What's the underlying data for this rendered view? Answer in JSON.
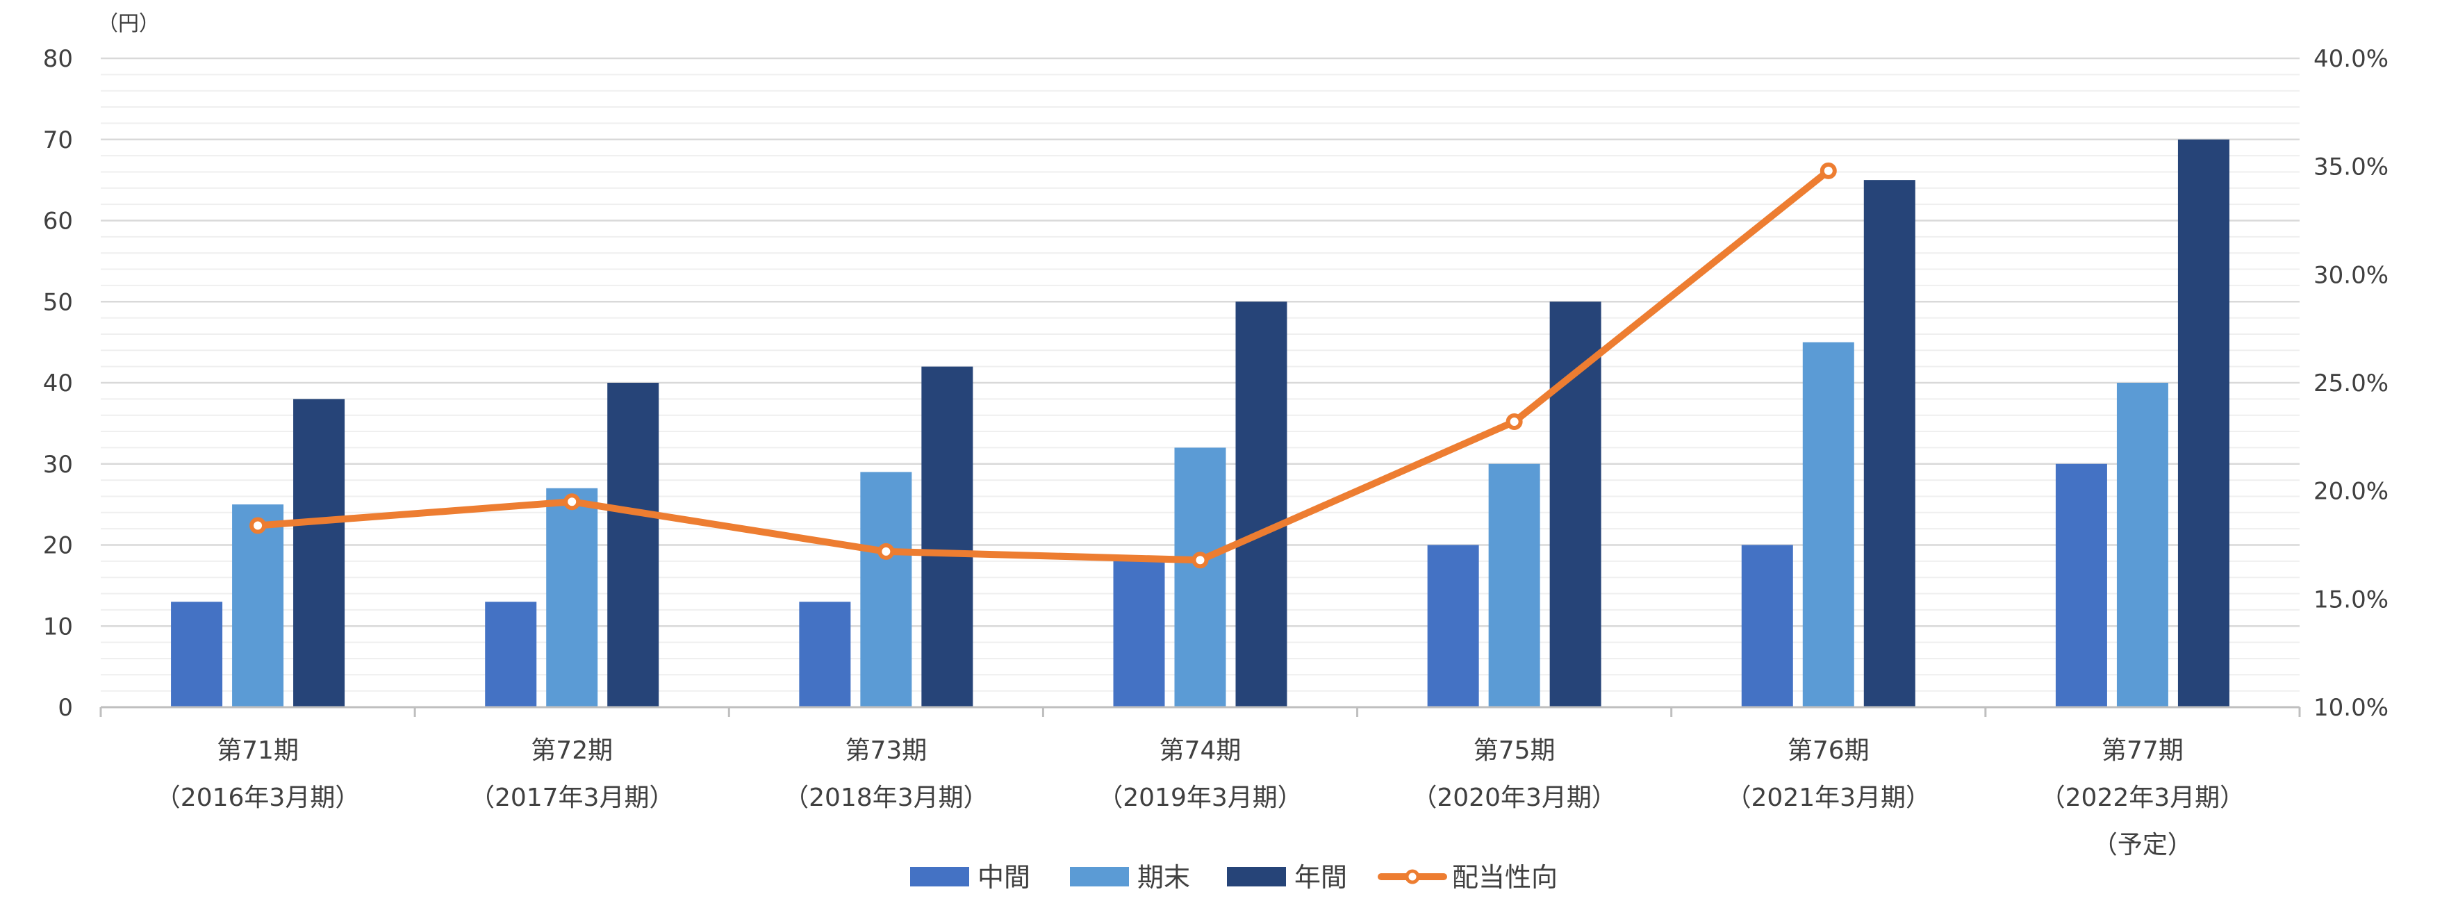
{
  "chart_data": {
    "type": "bar",
    "y_unit": "（円）",
    "categories": [
      [
        "第71期",
        "（2016年3月期）"
      ],
      [
        "第72期",
        "（2017年3月期）"
      ],
      [
        "第73期",
        "（2018年3月期）"
      ],
      [
        "第74期",
        "（2019年3月期）"
      ],
      [
        "第75期",
        "（2020年3月期）"
      ],
      [
        "第76期",
        "（2021年3月期）"
      ],
      [
        "第77期",
        "（2022年3月期）",
        "（予定）"
      ]
    ],
    "series": [
      {
        "name": "中間",
        "type": "bar",
        "axis": "left",
        "color": "#4472C4",
        "values": [
          13,
          13,
          13,
          18,
          20,
          20,
          30
        ]
      },
      {
        "name": "期末",
        "type": "bar",
        "axis": "left",
        "color": "#5B9BD5",
        "values": [
          25,
          27,
          29,
          32,
          30,
          45,
          40
        ]
      },
      {
        "name": "年間",
        "type": "bar",
        "axis": "left",
        "color": "#264478",
        "values": [
          38,
          40,
          42,
          50,
          50,
          65,
          70
        ]
      },
      {
        "name": "配当性向",
        "type": "line",
        "axis": "right",
        "color": "#ED7D31",
        "values": [
          18.4,
          19.5,
          17.2,
          16.8,
          23.2,
          34.8,
          null
        ]
      }
    ],
    "y_left": {
      "min": 0,
      "max": 80,
      "step": 10,
      "minor_step": 2,
      "tick_labels": [
        "0",
        "10",
        "20",
        "30",
        "40",
        "50",
        "60",
        "70",
        "80"
      ]
    },
    "y_right": {
      "min": 10,
      "max": 40,
      "step": 5,
      "tick_labels": [
        "10.0%",
        "15.0%",
        "20.0%",
        "25.0%",
        "30.0%",
        "35.0%",
        "40.0%"
      ]
    },
    "grid": true,
    "legend_position": "bottom"
  }
}
